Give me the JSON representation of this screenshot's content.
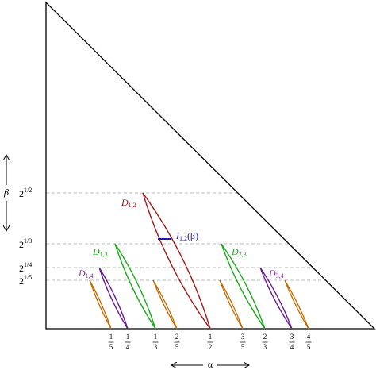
{
  "axes": {
    "x_label": "α",
    "y_label": "β"
  },
  "y_labels": [
    {
      "base": "2",
      "exponent": "1/2"
    },
    {
      "base": "2",
      "exponent": "1/3"
    },
    {
      "base": "2",
      "exponent": "1/4"
    },
    {
      "base": "2",
      "exponent": "1/5"
    }
  ],
  "x_labels": [
    {
      "num": "1",
      "den": "5"
    },
    {
      "num": "1",
      "den": "4"
    },
    {
      "num": "1",
      "den": "3"
    },
    {
      "num": "2",
      "den": "5"
    },
    {
      "num": "1",
      "den": "2"
    },
    {
      "num": "3",
      "den": "5"
    },
    {
      "num": "2",
      "den": "3"
    },
    {
      "num": "3",
      "den": "4"
    },
    {
      "num": "4",
      "den": "5"
    }
  ],
  "regions": [
    {
      "symbol": "D",
      "subscript": "1,2"
    },
    {
      "symbol": "I",
      "subscript": "1,2",
      "suffix": "(β)"
    },
    {
      "symbol": "D",
      "subscript": "1,3"
    },
    {
      "symbol": "D",
      "subscript": "2,3"
    },
    {
      "symbol": "D",
      "subscript": "1,4"
    },
    {
      "symbol": "D",
      "subscript": "3,4"
    }
  ]
}
